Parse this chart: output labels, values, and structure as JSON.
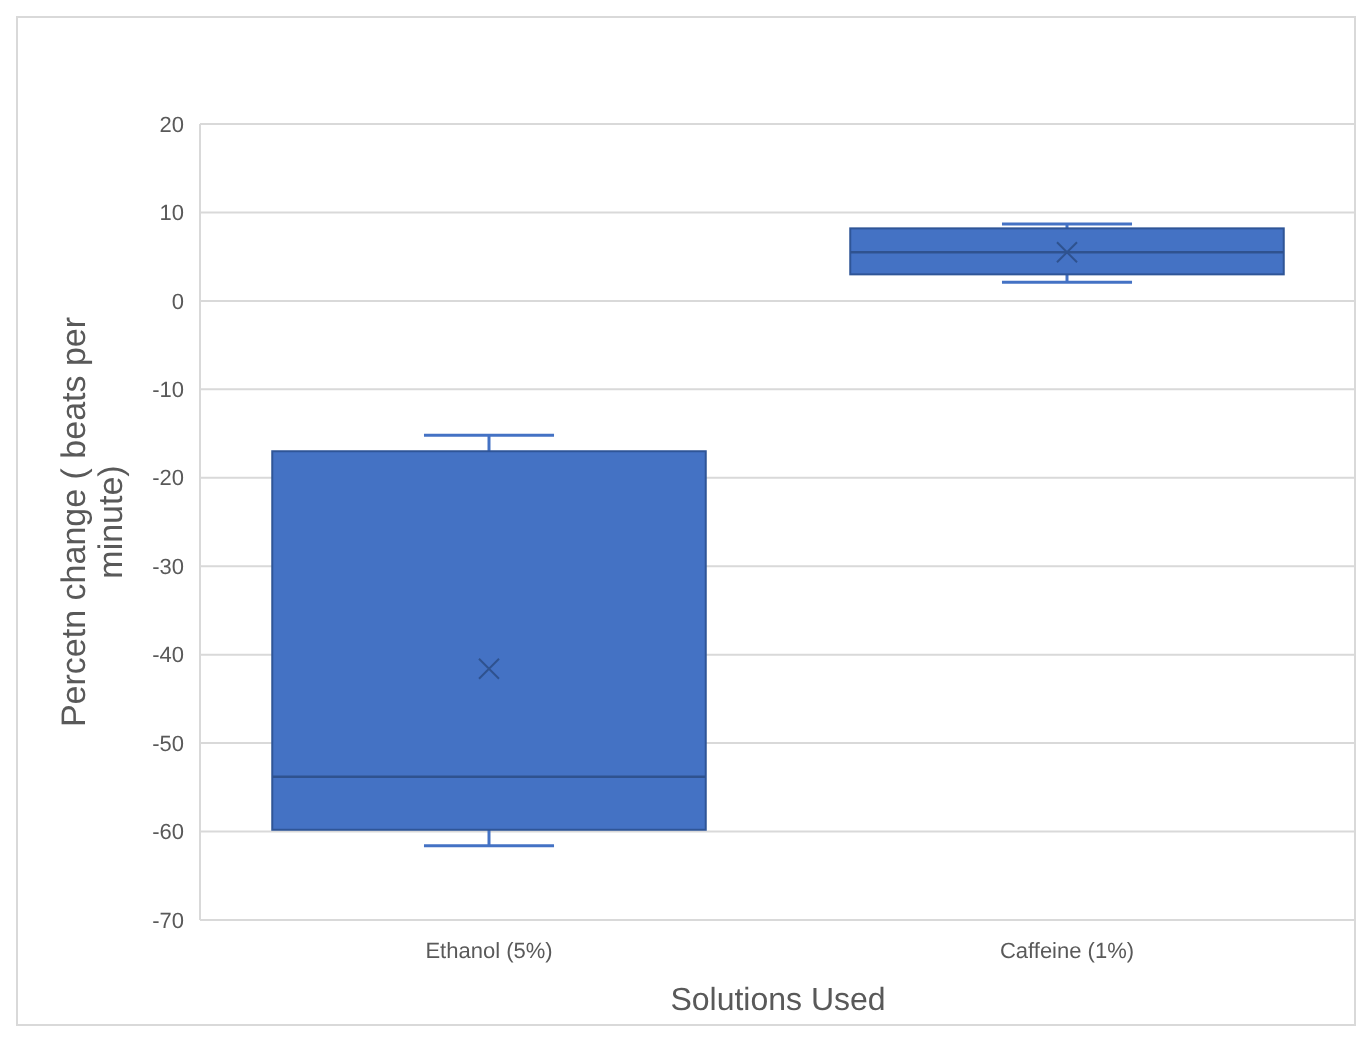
{
  "chart_data": {
    "type": "box",
    "xlabel": "Solutions Used",
    "ylabel": "Percetn change ( beats per minute)",
    "categories": [
      "Ethanol (5%)",
      "Caffeine (1%)"
    ],
    "color": "#4472c4",
    "ylim": [
      -70,
      20
    ],
    "yticks": [
      -70,
      -60,
      -50,
      -40,
      -30,
      -20,
      -10,
      0,
      10,
      20
    ],
    "grid": "y",
    "boxes": [
      {
        "low": -61.6,
        "q1": -59.8,
        "median": -53.8,
        "q3": -17,
        "high": -15.2,
        "mean": -41.6
      },
      {
        "low": 2.1,
        "q1": 3,
        "median": 5.5,
        "q3": 8.2,
        "high": 8.7,
        "mean": 5.5
      }
    ]
  }
}
